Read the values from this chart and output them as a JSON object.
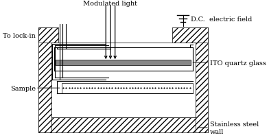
{
  "bg_color": "#ffffff",
  "line_color": "#000000",
  "labels": {
    "modulated_light": "Modulated light",
    "to_lock_in": "To lock-in",
    "dc_field": "D.C.  electric field",
    "sample": "Sample",
    "ito_glass": "ITO quartz glass",
    "ss_wall": "Stainless steel\nwall"
  },
  "figsize": [
    3.92,
    2.05
  ],
  "dpi": 100
}
